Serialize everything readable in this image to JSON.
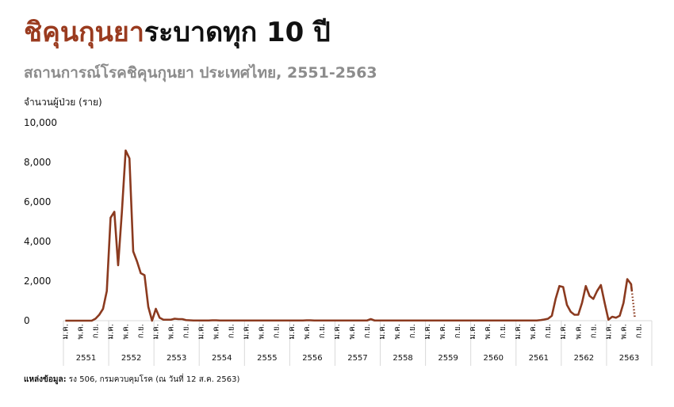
{
  "chart_data": {
    "type": "line",
    "title_highlight": "ชิคุนกุนยา",
    "title": "ระบาดทุก 10 ปี",
    "subtitle": "สถานการณ์โรคชิคุนกุนยา ประเทศไทย, 2551-2563",
    "y_label": "จำนวนผู้ป่วย (ราย)",
    "source_label": "แหล่งข้อมูล:",
    "source": "รง 506, กรมควบคุมโรค (ณ วันที่ 12 ส.ค. 2563)",
    "color": "#8b3a1f",
    "title_highlight_color": "#9a3b1f",
    "last_segment_style": "dotted",
    "ylim": [
      0,
      10000
    ],
    "yticks": [
      0,
      {
        "value": 2000,
        "label": "2,000"
      },
      {
        "value": 4000,
        "label": "4,000"
      },
      {
        "value": 6000,
        "label": "6,000"
      },
      {
        "value": 8000,
        "label": "8,000"
      },
      {
        "value": 10000,
        "label": "10,000"
      }
    ],
    "groups": [
      "2551",
      "2552",
      "2553",
      "2554",
      "2555",
      "2556",
      "2557",
      "2558",
      "2559",
      "2560",
      "2561",
      "2562",
      "2563"
    ],
    "categories": [
      "ม.ค.",
      null,
      null,
      null,
      "พ.ค.",
      null,
      null,
      null,
      "ก.ย.",
      null,
      null,
      null,
      "ม.ค.",
      null,
      null,
      null,
      "พ.ค.",
      null,
      null,
      null,
      "ก.ย.",
      null,
      null,
      null,
      "ม.ค.",
      null,
      null,
      null,
      "พ.ค.",
      null,
      null,
      null,
      "ก.ย.",
      null,
      null,
      null,
      "ม.ค.",
      null,
      null,
      null,
      "พ.ค.",
      null,
      null,
      null,
      "ก.ย.",
      null,
      null,
      null,
      "ม.ค.",
      null,
      null,
      null,
      "พ.ค.",
      null,
      null,
      null,
      "ก.ย.",
      null,
      null,
      null,
      "ม.ค.",
      null,
      null,
      null,
      "พ.ค.",
      null,
      null,
      null,
      "ก.ย.",
      null,
      null,
      null,
      "ม.ค.",
      null,
      null,
      null,
      "พ.ค.",
      null,
      null,
      null,
      "ก.ย.",
      null,
      null,
      null,
      "ม.ค.",
      null,
      null,
      null,
      "พ.ค.",
      null,
      null,
      null,
      "ก.ย.",
      null,
      null,
      null,
      "ม.ค.",
      null,
      null,
      null,
      "พ.ค.",
      null,
      null,
      null,
      "ก.ย.",
      null,
      null,
      null,
      "ม.ค.",
      null,
      null,
      null,
      "พ.ค.",
      null,
      null,
      null,
      "ก.ย.",
      null,
      null,
      null,
      "ม.ค.",
      null,
      null,
      null,
      "พ.ค.",
      null,
      null,
      null,
      "ก.ย.",
      null,
      null,
      null,
      "ม.ค.",
      null,
      null,
      null,
      "พ.ค.",
      null,
      null,
      null,
      "ก.ย.",
      null,
      null,
      null,
      "ม.ค.",
      null,
      null,
      null,
      "พ.ค.",
      null,
      null,
      null,
      "ก.ย.",
      null,
      null,
      null
    ],
    "values": [
      0,
      0,
      0,
      0,
      0,
      0,
      0,
      0,
      100,
      300,
      600,
      1500,
      5200,
      5500,
      2800,
      5500,
      8600,
      8200,
      3500,
      3000,
      2400,
      2300,
      700,
      0,
      600,
      150,
      50,
      50,
      50,
      100,
      80,
      80,
      30,
      20,
      10,
      10,
      10,
      10,
      10,
      20,
      20,
      10,
      10,
      10,
      10,
      10,
      10,
      10,
      10,
      10,
      10,
      10,
      10,
      10,
      10,
      10,
      10,
      10,
      10,
      10,
      10,
      10,
      10,
      10,
      20,
      20,
      10,
      10,
      10,
      10,
      10,
      10,
      10,
      10,
      10,
      10,
      10,
      10,
      10,
      10,
      10,
      80,
      10,
      10,
      10,
      10,
      10,
      10,
      10,
      10,
      10,
      10,
      10,
      10,
      10,
      10,
      10,
      10,
      10,
      10,
      10,
      10,
      10,
      10,
      10,
      10,
      10,
      10,
      10,
      10,
      10,
      10,
      10,
      10,
      10,
      10,
      10,
      10,
      10,
      10,
      10,
      10,
      10,
      10,
      10,
      10,
      30,
      60,
      100,
      250,
      1100,
      1750,
      1700,
      800,
      450,
      300,
      300,
      900,
      1750,
      1250,
      1100,
      1500,
      1800,
      900,
      50,
      200,
      150,
      250,
      900,
      2100,
      1850,
      200,
      null,
      null,
      null,
      null
    ]
  }
}
